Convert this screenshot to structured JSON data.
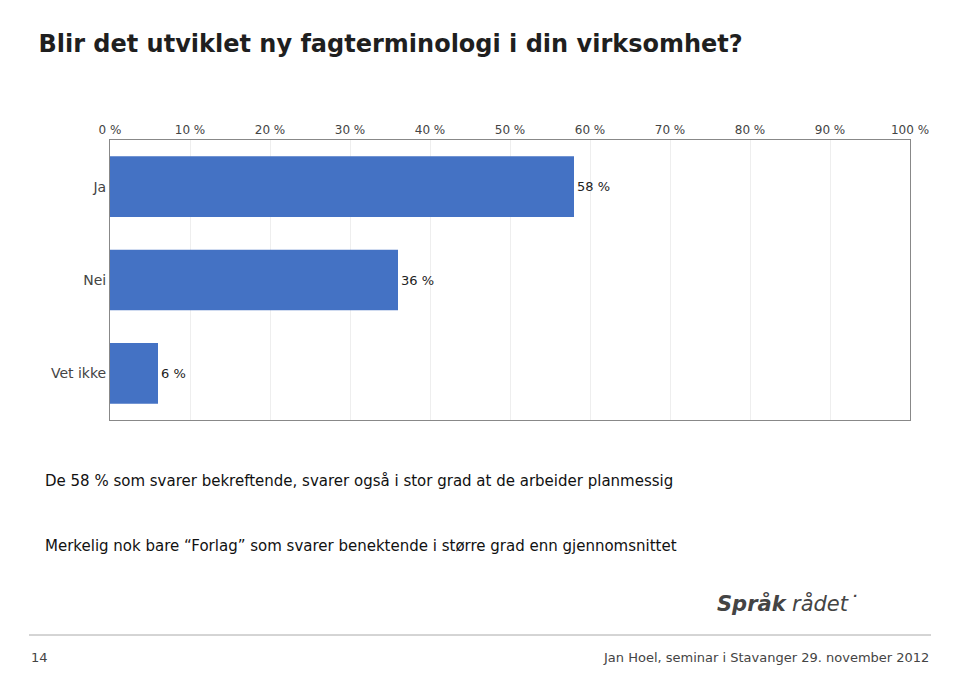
{
  "chart_data": {
    "type": "bar",
    "orientation": "horizontal",
    "title": "Blir det utviklet ny fagterminologi i din virksomhet?",
    "categories": [
      "Ja",
      "Nei",
      "Vet ikke"
    ],
    "values": [
      58,
      36,
      6
    ],
    "value_labels": [
      "58 %",
      "36 %",
      "6 %"
    ],
    "data_labels": true,
    "color": "#4472C4",
    "xlim": [
      0,
      100
    ],
    "xticks": [
      {
        "value": 0,
        "label": "0 %"
      },
      {
        "value": 10,
        "label": "10 %"
      },
      {
        "value": 20,
        "label": "20 %"
      },
      {
        "value": 30,
        "label": "30 %"
      },
      {
        "value": 40,
        "label": "40 %"
      },
      {
        "value": 50,
        "label": "50 %"
      },
      {
        "value": 60,
        "label": "60 %"
      },
      {
        "value": 70,
        "label": "70 %"
      },
      {
        "value": 80,
        "label": "80 %"
      },
      {
        "value": 90,
        "label": "90 %"
      },
      {
        "value": 100,
        "label": "100 %"
      }
    ],
    "grid": true,
    "annotations": [
      "De 58 % som svarer bekreftende, svarer også i stor grad at de arbeider planmessig",
      "Merkelig nok bare “Forlag” som svarer benektende i større grad enn gjennomsnittet",
      "Språk",
      "rådet˙",
      "14",
      "Jan Hoel, seminar i Stavanger 29. november 2012"
    ]
  }
}
